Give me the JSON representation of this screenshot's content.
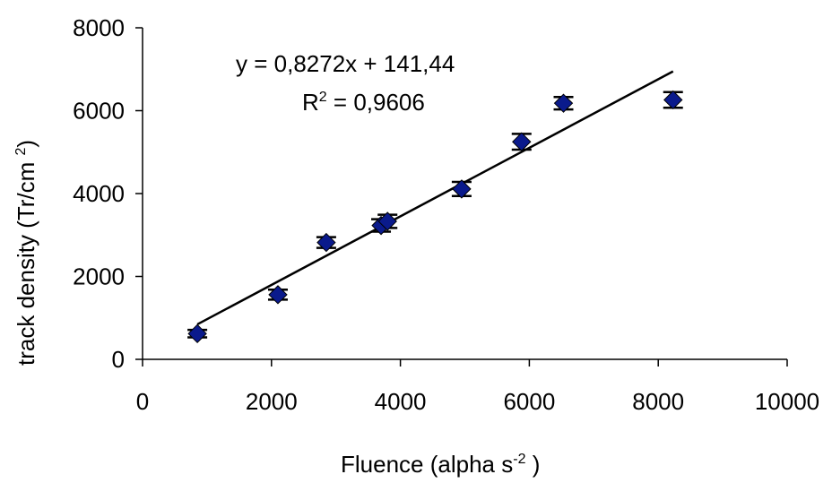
{
  "chart_data": {
    "type": "scatter",
    "xlabel": "Fluence (alpha s",
    "xlabel_sup": "-2",
    "xlabel_close": " )",
    "ylabel": "track density (Tr/cm ",
    "ylabel_sup": "2",
    "ylabel_close": ")",
    "xlim": [
      0,
      10000
    ],
    "ylim": [
      0,
      8000
    ],
    "x_ticks": [
      "0",
      "2000",
      "4000",
      "6000",
      "8000",
      "10000"
    ],
    "y_ticks": [
      "0",
      "2000",
      "4000",
      "6000",
      "8000"
    ],
    "grid": false,
    "legend": "none",
    "marker": "diamond",
    "marker_color": "#0a1a8c",
    "series": [
      {
        "points": [
          {
            "x": 850,
            "y": 620,
            "err": 90
          },
          {
            "x": 2100,
            "y": 1560,
            "err": 120
          },
          {
            "x": 2850,
            "y": 2820,
            "err": 130
          },
          {
            "x": 3700,
            "y": 3230,
            "err": 150
          },
          {
            "x": 3800,
            "y": 3330,
            "err": 160
          },
          {
            "x": 4950,
            "y": 4110,
            "err": 170
          },
          {
            "x": 5880,
            "y": 5250,
            "err": 190
          },
          {
            "x": 6530,
            "y": 6180,
            "err": 150
          },
          {
            "x": 8230,
            "y": 6260,
            "err": 190
          }
        ]
      }
    ],
    "trendline": {
      "slope": 0.8272,
      "intercept": 141.44,
      "x_range": [
        850,
        8230
      ],
      "equation_text": "y = 0,8272x + 141,44",
      "r2_prefix": "R",
      "r2_sup": "2",
      "r2_value": " = 0,9606"
    }
  }
}
